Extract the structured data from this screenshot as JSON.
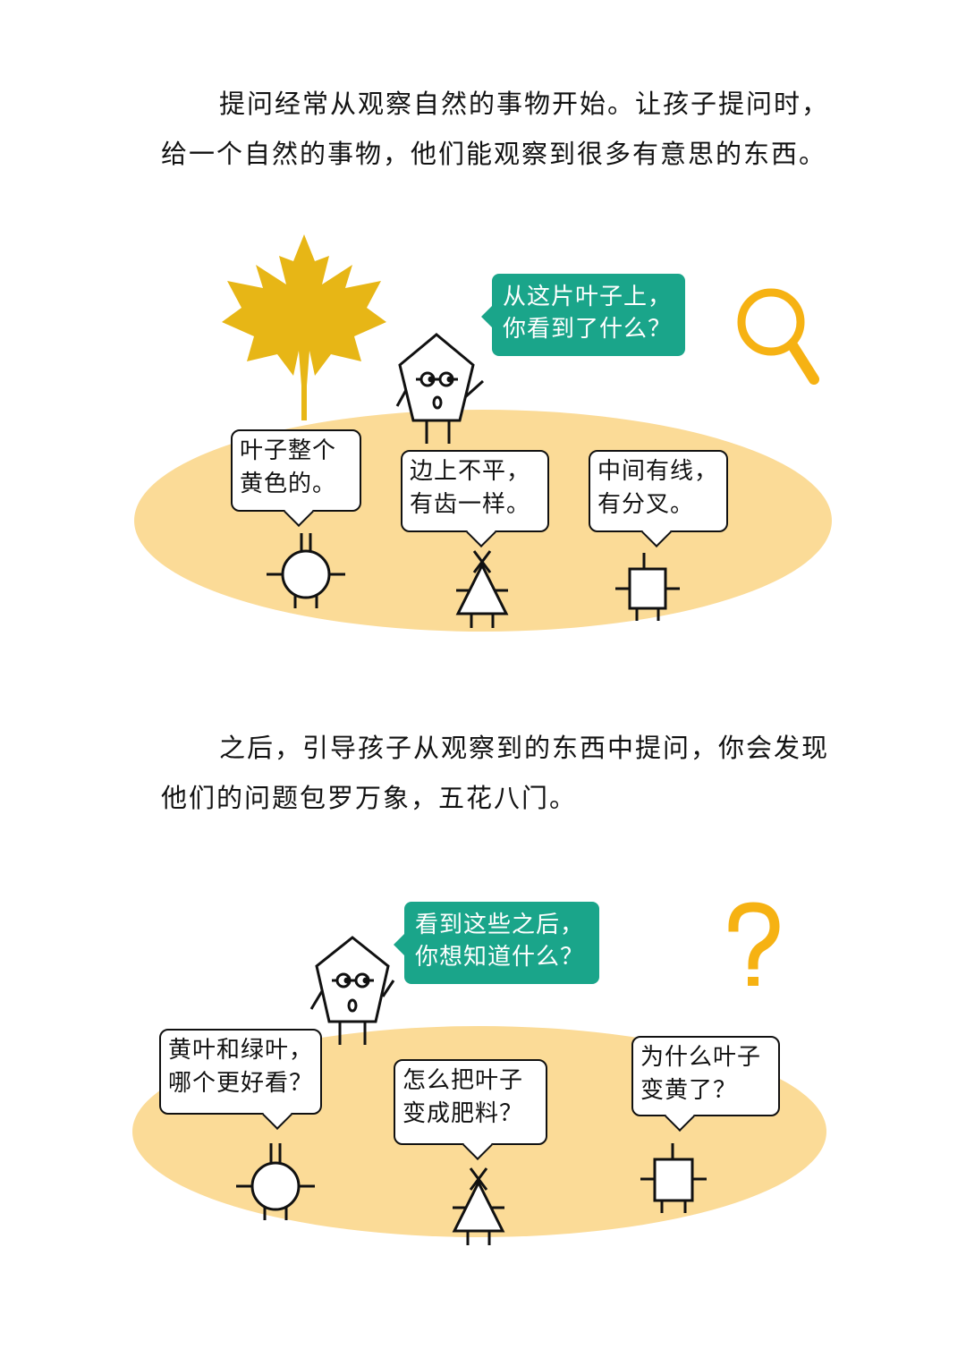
{
  "intro": {
    "line1": "提问经常从观察自然的事物开始。让孩子提问时，",
    "line2": "给一个自然的事物，他们能观察到很多有意思的东西。"
  },
  "scene1": {
    "teacher_bubble": {
      "line1": "从这片叶子上，",
      "line2": "你看到了什么？"
    },
    "bubbles": [
      {
        "line1": "叶子整个",
        "line2": "黄色的。"
      },
      {
        "line1": "边上不平，",
        "line2": "有齿一样。"
      },
      {
        "line1": "中间有线，",
        "line2": "有分叉。"
      }
    ],
    "icons": [
      "maple-leaf-icon",
      "magnifier-icon"
    ]
  },
  "middle": {
    "line1": "之后，引导孩子从观察到的东西中提问，你会发现",
    "line2": "他们的问题包罗万象，五花八门。"
  },
  "scene2": {
    "teacher_bubble": {
      "line1": "看到这些之后，",
      "line2": "你想知道什么？"
    },
    "bubbles": [
      {
        "line1": "黄叶和绿叶，",
        "line2": "哪个更好看？"
      },
      {
        "line1": "怎么把叶子",
        "line2": "变成肥料？"
      },
      {
        "line1": "为什么叶子",
        "line2": "变黄了？"
      }
    ],
    "icons": [
      "question-mark-icon"
    ]
  },
  "colors": {
    "ground": "#fbdb97",
    "leaf": "#e7b616",
    "accent": "#f6b213",
    "teacher_bubble": "#1aa58a",
    "ink": "#111111"
  }
}
